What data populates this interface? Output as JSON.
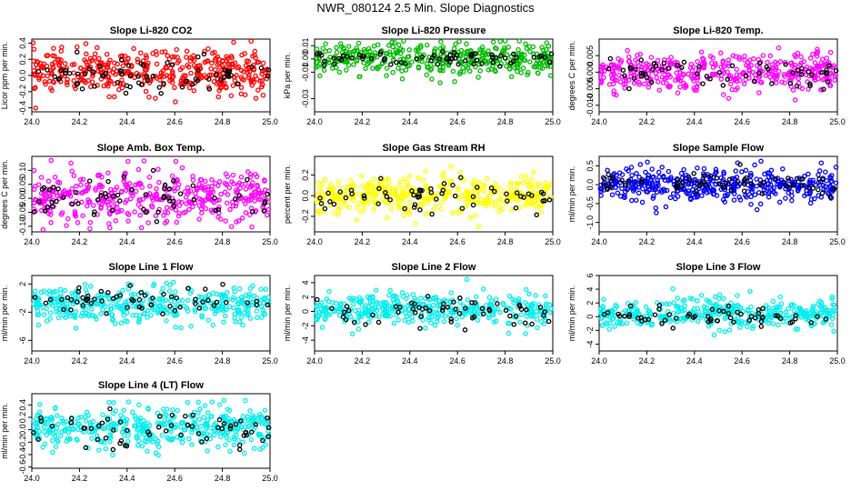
{
  "page": {
    "title": "NWR_080124  2.5 Min. Slope Diagnostics"
  },
  "chart_data": [
    {
      "type": "scatter",
      "title": "Slope Li-820 CO2",
      "ylabel": "Licor ppm per min.",
      "xlim": [
        24.0,
        25.0
      ],
      "ylim": [
        -0.45,
        0.45
      ],
      "xticks": [
        24.0,
        24.2,
        24.4,
        24.6,
        24.8,
        25.0
      ],
      "yticks": [
        -0.4,
        -0.2,
        0.0,
        0.2,
        0.4
      ],
      "ytick_labels": [
        "-0.4",
        "-0.2",
        "0.0",
        "0.2",
        "0.4"
      ],
      "series": [
        {
          "color": "#ff0000",
          "count": 420,
          "center": 0.05,
          "spread": 0.13
        },
        {
          "color": "#000000",
          "count": 70,
          "center": 0.0,
          "spread": 0.12
        }
      ]
    },
    {
      "type": "scatter",
      "title": "Slope Li-820 Pressure",
      "ylabel": "kPa per min.",
      "xlim": [
        24.0,
        25.0
      ],
      "ylim": [
        -0.04,
        0.015
      ],
      "xticks": [
        24.0,
        24.2,
        24.4,
        24.6,
        24.8,
        25.0
      ],
      "yticks": [
        -0.03,
        -0.01,
        0.0,
        0.01
      ],
      "ytick_labels": [
        "-0.03",
        "-0.01",
        "0.00",
        "0.01"
      ],
      "series": [
        {
          "color": "#00bb00",
          "count": 380,
          "center": 0.0,
          "spread": 0.006
        },
        {
          "color": "#000000",
          "count": 70,
          "center": 0.0,
          "spread": 0.003
        }
      ]
    },
    {
      "type": "scatter",
      "title": "Slope Li-820 Temp.",
      "ylabel": "degrees C per min.",
      "xlim": [
        24.0,
        25.0
      ],
      "ylim": [
        -0.012,
        0.01
      ],
      "xticks": [
        24.0,
        24.2,
        24.4,
        24.6,
        24.8,
        25.0
      ],
      "yticks": [
        -0.01,
        -0.005,
        0.0,
        0.005
      ],
      "ytick_labels": [
        "-0.010",
        "-0.005",
        "0.000",
        "0.005"
      ],
      "series": [
        {
          "color": "#ff00ff",
          "count": 400,
          "center": 0.0,
          "spread": 0.0028
        },
        {
          "color": "#000000",
          "count": 60,
          "center": 0.0,
          "spread": 0.0025
        }
      ]
    },
    {
      "type": "scatter",
      "title": "Slope Amb. Box Temp.",
      "ylabel": "degrees C per min.",
      "xlim": [
        24.0,
        25.0
      ],
      "ylim": [
        -0.12,
        0.15
      ],
      "xticks": [
        24.0,
        24.2,
        24.4,
        24.6,
        24.8,
        25.0
      ],
      "yticks": [
        -0.1,
        -0.05,
        0.0,
        0.05,
        0.1
      ],
      "ytick_labels": [
        "-0.10",
        "-0.05",
        "0.00",
        "0.05",
        "0.10"
      ],
      "series": [
        {
          "color": "#ff00ff",
          "count": 420,
          "center": 0.01,
          "spread": 0.045
        },
        {
          "color": "#000000",
          "count": 60,
          "center": 0.0,
          "spread": 0.04
        }
      ]
    },
    {
      "type": "scatter",
      "title": "Slope Gas Stream RH",
      "ylabel": "percent per min.",
      "xlim": [
        24.0,
        25.0
      ],
      "ylim": [
        -0.35,
        0.38
      ],
      "xticks": [
        24.0,
        24.2,
        24.4,
        24.6,
        24.8,
        25.0
      ],
      "yticks": [
        -0.2,
        0.0,
        0.2
      ],
      "ytick_labels": [
        "-0.2",
        "0.0",
        "0.2"
      ],
      "series": [
        {
          "color": "#ffff00",
          "count": 420,
          "center": 0.0,
          "spread": 0.09
        },
        {
          "color": "#000000",
          "count": 60,
          "center": 0.0,
          "spread": 0.07
        }
      ]
    },
    {
      "type": "scatter",
      "title": "Slope Sample Flow",
      "ylabel": "ml/min per min.",
      "xlim": [
        24.0,
        25.0
      ],
      "ylim": [
        -1.25,
        0.75
      ],
      "xticks": [
        24.0,
        24.2,
        24.4,
        24.6,
        24.8,
        25.0
      ],
      "yticks": [
        -1.0,
        -0.5,
        0.0,
        0.5
      ],
      "ytick_labels": [
        "-1.0",
        "-0.5",
        "0.0",
        "0.5"
      ],
      "series": [
        {
          "color": "#0000ee",
          "count": 420,
          "center": 0.0,
          "spread": 0.22
        },
        {
          "color": "#000000",
          "count": 60,
          "center": 0.0,
          "spread": 0.15
        }
      ]
    },
    {
      "type": "scatter",
      "title": "Slope Line 1 Flow",
      "ylabel": "ml/min per min.",
      "xlim": [
        24.0,
        25.0
      ],
      "ylim": [
        -7.5,
        3.2
      ],
      "xticks": [
        24.0,
        24.2,
        24.4,
        24.6,
        24.8,
        25.0
      ],
      "yticks": [
        -6,
        -2,
        2
      ],
      "ytick_labels": [
        "-6",
        "-2",
        "2"
      ],
      "series": [
        {
          "color": "#00eeee",
          "count": 380,
          "center": -1.0,
          "spread": 1.3
        },
        {
          "color": "#000000",
          "count": 60,
          "center": -0.3,
          "spread": 1.0
        }
      ]
    },
    {
      "type": "scatter",
      "title": "Slope Line 2 Flow",
      "ylabel": "ml/min per min.",
      "xlim": [
        24.0,
        25.0
      ],
      "ylim": [
        -5.5,
        5.0
      ],
      "xticks": [
        24.0,
        24.2,
        24.4,
        24.6,
        24.8,
        25.0
      ],
      "yticks": [
        -4,
        -2,
        0,
        2,
        4
      ],
      "ytick_labels": [
        "-4",
        "-2",
        "0",
        "2",
        "4"
      ],
      "series": [
        {
          "color": "#00eeee",
          "count": 380,
          "center": 0.3,
          "spread": 1.1
        },
        {
          "color": "#000000",
          "count": 60,
          "center": 0.0,
          "spread": 1.0
        }
      ]
    },
    {
      "type": "scatter",
      "title": "Slope Line 3 Flow",
      "ylabel": "ml/min per min.",
      "xlim": [
        24.0,
        25.0
      ],
      "ylim": [
        -5.0,
        6.0
      ],
      "xticks": [
        24.0,
        24.2,
        24.4,
        24.6,
        24.8,
        25.0
      ],
      "yticks": [
        -4,
        -2,
        0,
        2,
        4,
        6
      ],
      "ytick_labels": [
        "-4",
        "-2",
        "0",
        "2",
        "4",
        "6"
      ],
      "series": [
        {
          "color": "#00eeee",
          "count": 380,
          "center": 0.4,
          "spread": 1.1
        },
        {
          "color": "#000000",
          "count": 60,
          "center": 0.0,
          "spread": 0.8
        }
      ]
    },
    {
      "type": "scatter",
      "title": "Slope Line 4 (LT) Flow",
      "ylabel": "ml/min per min.",
      "xlim": [
        24.0,
        25.0
      ],
      "ylim": [
        -0.62,
        0.58
      ],
      "xticks": [
        24.0,
        24.2,
        24.4,
        24.6,
        24.8,
        25.0
      ],
      "yticks": [
        -0.6,
        -0.4,
        -0.2,
        0.0,
        0.2,
        0.4
      ],
      "ytick_labels": [
        "-0.6",
        "-0.4",
        "-0.2",
        "0.0",
        "0.2",
        "0.4"
      ],
      "series": [
        {
          "color": "#00eeee",
          "count": 420,
          "center": 0.03,
          "spread": 0.16
        },
        {
          "color": "#000000",
          "count": 60,
          "center": 0.0,
          "spread": 0.15
        }
      ]
    }
  ]
}
